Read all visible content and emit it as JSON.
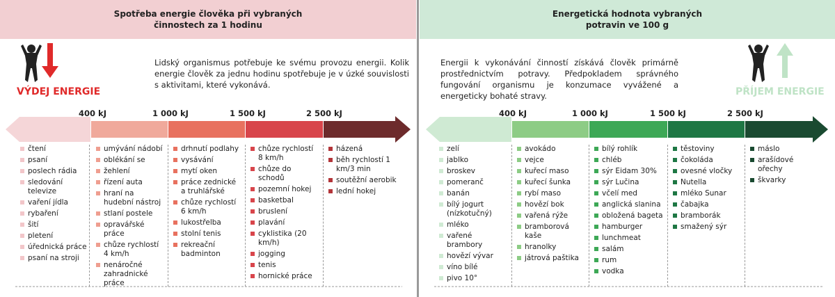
{
  "left": {
    "header": {
      "title": "Spotřeba energie člověka při vybraných činnostech za 1 hodinu"
    },
    "label": "VÝDEJ ENERGIE",
    "intro": "Lidský organismus potřebuje ke svému provozu energii. Kolik energie člověk za jednu hodinu spotřebuje je v úzké souvislosti s aktivitami, které vykonává.",
    "thresholds": [
      "400 kJ",
      "1 000 kJ",
      "1 500 kJ",
      "2 500 kJ"
    ],
    "columns": [
      [
        "čtení",
        "psaní",
        "poslech rádia",
        "sledování televize",
        "vaření jídla",
        "rybaření",
        "šití",
        "pletení",
        "úřednická práce",
        "psaní na stroji"
      ],
      [
        "umývání nádobí",
        "oblékání se",
        "žehlení",
        "řízení auta",
        "hraní na hudební nástroj",
        "stlaní postele",
        "opravářské práce",
        "chůze rychlostí 4 km/h",
        "nenáročné zahradnické práce"
      ],
      [
        "drhnutí podlahy",
        "vysávání",
        "mytí oken",
        "práce zednické a truhlářské",
        "chůze rychlostí 6 km/h",
        "lukostřelba",
        "stolní tenis",
        "rekreační badminton"
      ],
      [
        "chůze rychlostí 8 km/h",
        "chůze do schodů",
        "pozemní hokej",
        "basketbal",
        "bruslení",
        "plavání",
        "cyklistika (20 km/h)",
        "jogging",
        "tenis",
        "hornické práce"
      ],
      [
        "házená",
        "běh rychlostí 1 km/3 min",
        "soutěžní aerobik",
        "lední hokej"
      ]
    ]
  },
  "right": {
    "header": {
      "title": "Energetická hodnota vybraných potravin ve 100 g"
    },
    "label": "PŘÍJEM ENERGIE",
    "intro": "Energii k vykonávání činností získává člověk primárně prostřednictvím potravy. Předpokladem správného fungování organismu je konzumace vyvážené a energeticky bohaté stravy.",
    "thresholds": [
      "400 kJ",
      "1 000 kJ",
      "1 500 kJ",
      "2 500 kJ"
    ],
    "columns": [
      [
        "zelí",
        "jablko",
        "broskev",
        "pomeranč",
        "banán",
        "bílý jogurt (nízkotučný)",
        "mléko",
        "vařené brambory",
        "hovězí vývar",
        "víno bílé",
        "pivo 10°"
      ],
      [
        "avokádo",
        "vejce",
        "kuřecí maso",
        "kuřecí šunka",
        "rybí maso",
        "hovězí bok",
        "vařená rýže",
        "bramborová kaše",
        "hranolky",
        "játrová paštika"
      ],
      [
        "bílý rohlík",
        "chléb",
        "sýr Eidam 30%",
        "sýr Lučina",
        "včelí med",
        "anglická slanina",
        "obložená bageta",
        "hamburger",
        "lunchmeat",
        "salám",
        "rum",
        "vodka"
      ],
      [
        "těstoviny",
        "čokoláda",
        "ovesné vločky",
        "Nutella",
        "mléko Sunar",
        "čabajka",
        "bramborák",
        "smažený sýr"
      ],
      [
        "máslo",
        "arašídové ořechy",
        "škvarky"
      ]
    ]
  }
}
